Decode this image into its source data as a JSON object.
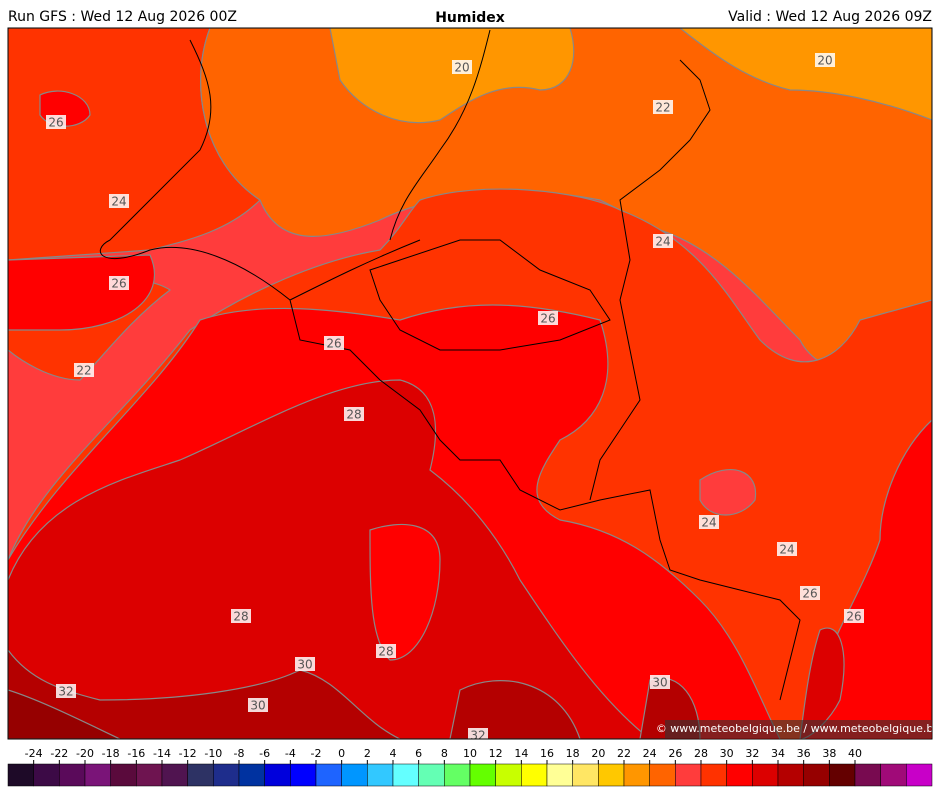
{
  "header": {
    "run": "Run GFS : Wed 12 Aug 2026 00Z",
    "title": "Humidex",
    "valid": "Valid : Wed 12 Aug 2026 09Z"
  },
  "map": {
    "contour_labels": [
      20,
      20,
      22,
      26,
      24,
      24,
      26,
      26,
      26,
      22,
      28,
      24,
      24,
      26,
      26,
      28,
      28,
      30,
      30,
      32,
      30,
      32
    ]
  },
  "colorbar": {
    "ticks": [
      -24,
      -22,
      -20,
      -18,
      -16,
      -14,
      -12,
      -10,
      -8,
      -6,
      -4,
      -2,
      0,
      2,
      4,
      6,
      8,
      10,
      12,
      14,
      16,
      18,
      20,
      22,
      24,
      26,
      28,
      30,
      32,
      34,
      36,
      38,
      40
    ],
    "colors": [
      "#1e0a28",
      "#3c0a46",
      "#5a0a5a",
      "#7a1478",
      "#5a0a3c",
      "#6e1450",
      "#501450",
      "#2d3264",
      "#1e2d8c",
      "#0032a0",
      "#0000dc",
      "#0000ff",
      "#1e64ff",
      "#0096ff",
      "#32c8ff",
      "#64ffff",
      "#64ffb4",
      "#64ff64",
      "#64ff00",
      "#c8ff00",
      "#ffff00",
      "#ffff96",
      "#ffe664",
      "#ffc800",
      "#ff9600",
      "#ff6400",
      "#ff3c3c",
      "#ff3200",
      "#ff0000",
      "#dc0000",
      "#b40000",
      "#960000",
      "#640000",
      "#780a50",
      "#a00a78",
      "#c800c8"
    ]
  },
  "copyright": "© www.meteobelgique.be / www.meteobelgique.be"
}
